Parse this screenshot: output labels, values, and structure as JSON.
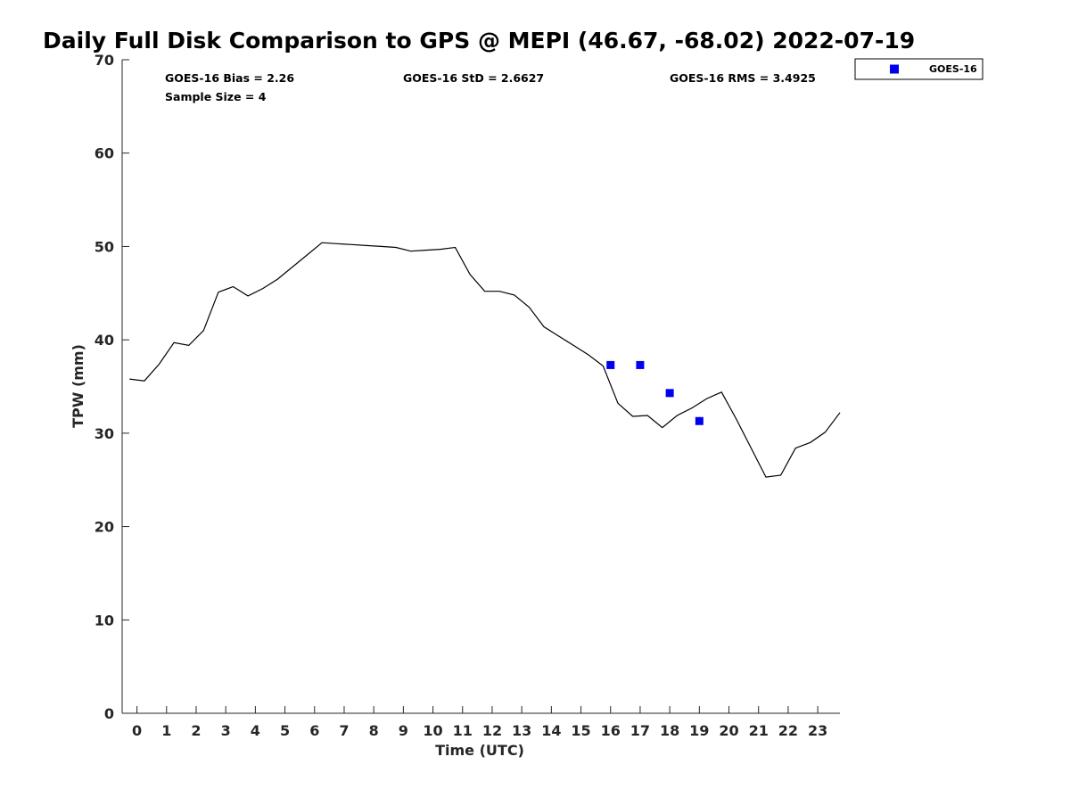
{
  "chart_data": {
    "type": "line",
    "title": "Daily Full Disk Comparison to GPS @ MEPI (46.67, -68.02) 2022-07-19",
    "xlabel": "Time (UTC)",
    "ylabel": "TPW (mm)",
    "xlim": [
      -0.5,
      23.75
    ],
    "ylim": [
      0,
      70
    ],
    "x_ticks": [
      0,
      1,
      2,
      3,
      4,
      5,
      6,
      7,
      8,
      9,
      10,
      11,
      12,
      13,
      14,
      15,
      16,
      17,
      18,
      19,
      20,
      21,
      22,
      23
    ],
    "x_tick_labels": [
      "0",
      "1",
      "2",
      "3",
      "4",
      "5",
      "6",
      "7",
      "8",
      "9",
      "10",
      "11",
      "12",
      "13",
      "14",
      "15",
      "16",
      "17",
      "18",
      "19",
      "20",
      "21",
      "22",
      "23"
    ],
    "y_ticks": [
      0,
      10,
      20,
      30,
      40,
      50,
      60,
      70
    ],
    "y_tick_labels": [
      "0",
      "10",
      "20",
      "30",
      "40",
      "50",
      "60",
      "70"
    ],
    "grid": false,
    "legend_position": "top-right outside",
    "stats": {
      "bias": "GOES-16 Bias = 2.26",
      "std": "GOES-16 StD = 2.6627",
      "rms": "GOES-16 RMS = 3.4925",
      "sample_size": "Sample Size = 4"
    },
    "series": [
      {
        "role": "gps-line",
        "color": "#000000",
        "x": [
          -0.25,
          0.25,
          0.75,
          1.25,
          1.75,
          2.25,
          2.75,
          3.25,
          3.75,
          4.25,
          4.75,
          5.25,
          5.75,
          6.25,
          6.75,
          7.25,
          7.75,
          8.25,
          8.75,
          9.25,
          9.75,
          10.25,
          10.75,
          11.25,
          11.75,
          12.25,
          12.75,
          13.25,
          13.75,
          14.25,
          14.75,
          15.25,
          15.75,
          16.25,
          16.75,
          17.25,
          17.75,
          18.25,
          18.75,
          19.25,
          19.75,
          20.25,
          20.75,
          21.25,
          21.75,
          22.25,
          22.75,
          23.25,
          23.75
        ],
        "y": [
          35.8,
          35.6,
          37.4,
          39.7,
          39.4,
          41.0,
          45.1,
          45.7,
          44.7,
          45.5,
          46.5,
          47.8,
          49.1,
          50.4,
          50.3,
          50.2,
          50.1,
          50.0,
          49.9,
          49.5,
          49.6,
          49.7,
          49.9,
          47.0,
          45.2,
          45.2,
          44.8,
          43.5,
          41.4,
          40.4,
          39.4,
          38.4,
          37.2,
          33.2,
          31.8,
          31.9,
          30.6,
          31.9,
          32.7,
          33.7,
          34.4,
          31.5,
          28.4,
          25.3,
          25.5,
          28.4,
          29.0,
          30.1,
          32.2
        ]
      },
      {
        "name": "GOES-16",
        "role": "goes-points",
        "color": "#0000ee",
        "x": [
          16,
          17,
          18,
          19
        ],
        "y": [
          37.3,
          37.3,
          34.3,
          31.3
        ]
      }
    ]
  }
}
